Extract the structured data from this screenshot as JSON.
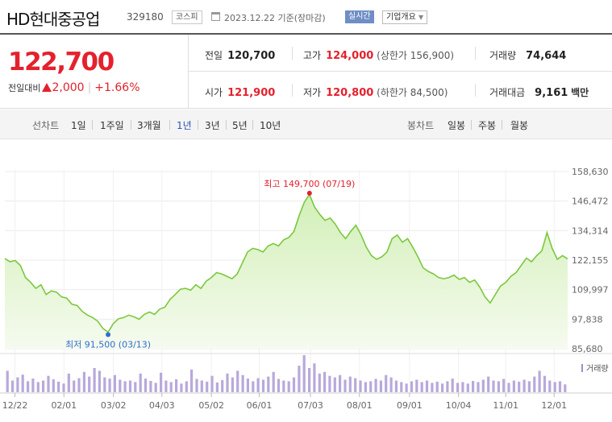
{
  "header": {
    "company_name": "HD현대중공업",
    "stock_code": "329180",
    "market": "코스피",
    "date_text": "2023.12.22  기준(장마감)",
    "realtime_label": "실시간",
    "company_info_label": "기업개요"
  },
  "quote": {
    "price": "122,700",
    "change_label": "전일대비",
    "change_amount": "2,000",
    "change_percent": "+1.66%",
    "prev_close_label": "전일",
    "prev_close": "120,700",
    "high_label": "고가",
    "high": "124,000",
    "upper_limit": "(상한가 156,900)",
    "volume_label": "거래량",
    "volume": "74,644",
    "open_label": "시가",
    "open": "121,900",
    "low_label": "저가",
    "low": "120,800",
    "lower_limit": "(하한가 84,500)",
    "trade_value_label": "거래대금",
    "trade_value": "9,161",
    "trade_value_unit": "백만"
  },
  "tabs": {
    "line_chart_label": "선차트",
    "periods": [
      "1일",
      "1주일",
      "3개월",
      "1년",
      "3년",
      "5년",
      "10년"
    ],
    "selected_period": "1년",
    "candle_chart_label": "봉차트",
    "candle_periods": [
      "일봉",
      "주봉",
      "월봉"
    ]
  },
  "colors": {
    "up": "#e4212d",
    "down": "#2f6ecf",
    "line": "#7cc83e",
    "area_top": "#d2efb7",
    "area_bottom": "#f5fbef",
    "volume_bar": "#b8a9db",
    "selected_tab": "#2b53b5"
  },
  "chart_data": {
    "type": "area",
    "yticks": [
      "158,630",
      "146,472",
      "134,314",
      "122,155",
      "109,997",
      "97,838",
      "85,680"
    ],
    "ylim": [
      85680,
      158630
    ],
    "x_tick_labels": [
      "12/22",
      "02/01",
      "03/02",
      "04/03",
      "05/02",
      "06/01",
      "07/03",
      "08/01",
      "09/01",
      "10/04",
      "11/01",
      "12/01"
    ],
    "high_annotation": "최고 149,700 (07/19)",
    "low_annotation": "최저 91,500 (03/13)",
    "high_value": 149700,
    "low_value": 91500,
    "volume_label": "거래량",
    "prices": [
      122800,
      121500,
      122000,
      120000,
      115000,
      113000,
      110500,
      112000,
      108000,
      109500,
      109000,
      107000,
      106500,
      104000,
      103500,
      101000,
      99500,
      98500,
      97000,
      94000,
      92500,
      96000,
      98000,
      98500,
      99500,
      98800,
      97800,
      99800,
      100800,
      99800,
      102000,
      102800,
      106000,
      108000,
      110200,
      110500,
      109800,
      112000,
      110500,
      113500,
      115000,
      117000,
      116500,
      115500,
      114500,
      116500,
      121000,
      125500,
      127000,
      126500,
      125500,
      128000,
      129000,
      128000,
      130500,
      131500,
      134000,
      140500,
      146000,
      149200,
      144000,
      141000,
      138500,
      139500,
      137000,
      133500,
      131000,
      134000,
      136500,
      132500,
      127500,
      124000,
      122500,
      123500,
      125500,
      131000,
      132500,
      129500,
      131000,
      127500,
      123500,
      119000,
      117500,
      116500,
      115000,
      114500,
      115000,
      116000,
      114200,
      115000,
      113000,
      114000,
      111000,
      107000,
      104500,
      108000,
      111500,
      113000,
      115500,
      117000,
      120000,
      123000,
      121500,
      124000,
      126000,
      133500,
      127000,
      122500,
      124000,
      122700
    ],
    "volumes": [
      55,
      30,
      38,
      45,
      28,
      35,
      26,
      30,
      42,
      33,
      27,
      22,
      48,
      30,
      36,
      52,
      40,
      62,
      55,
      38,
      35,
      44,
      32,
      28,
      30,
      26,
      48,
      35,
      29,
      24,
      50,
      30,
      26,
      33,
      22,
      28,
      58,
      34,
      30,
      27,
      42,
      25,
      31,
      48,
      38,
      55,
      44,
      35,
      28,
      36,
      32,
      40,
      52,
      34,
      30,
      28,
      38,
      68,
      95,
      62,
      74,
      48,
      52,
      42,
      38,
      44,
      32,
      40,
      36,
      30,
      26,
      28,
      34,
      30,
      44,
      38,
      30,
      26,
      22,
      28,
      32,
      26,
      30,
      24,
      27,
      22,
      28,
      35,
      24,
      26,
      22,
      29,
      26,
      32,
      40,
      30,
      28,
      34,
      24,
      30,
      27,
      32,
      28,
      40,
      55,
      42,
      30,
      26,
      28,
      20
    ]
  }
}
